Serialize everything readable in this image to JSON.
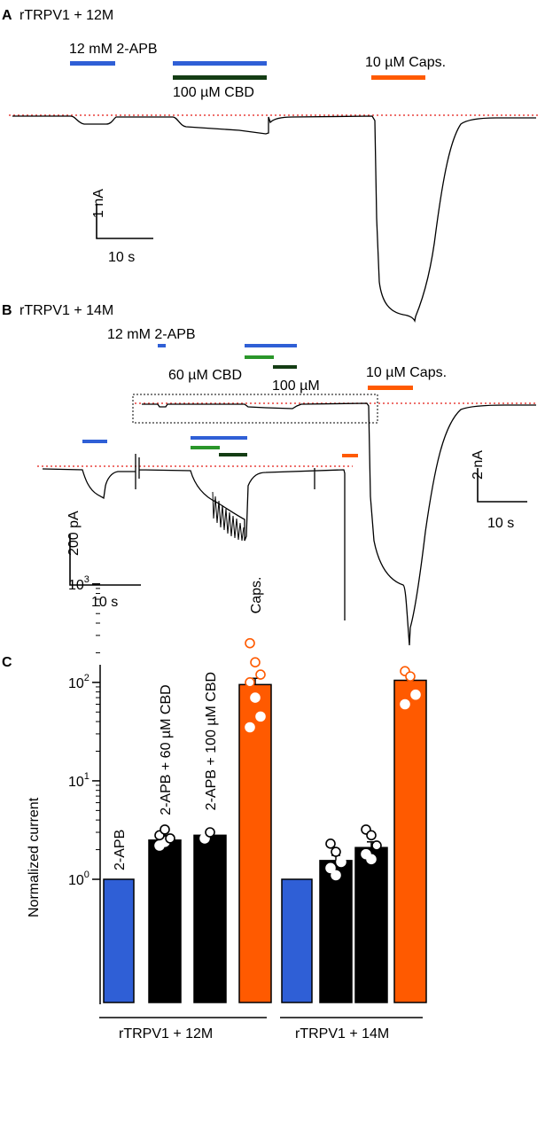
{
  "colors": {
    "blue": "#2f5fd6",
    "darkgreen": "#143d14",
    "green": "#2a962a",
    "orange": "#ff5a00",
    "baseline_red": "#e8413c",
    "bar_black": "#000000"
  },
  "panelA": {
    "letter": "A",
    "title": "rTRPV1 + 12M",
    "label_2apb": "12 mM 2-APB",
    "label_cbd": "100 µM CBD",
    "label_caps": "10 µM Caps.",
    "scale_y": "1 nA",
    "scale_x": "10 s"
  },
  "panelB": {
    "letter": "B",
    "title": "rTRPV1 + 14M",
    "label_2apb": "12 mM 2-APB",
    "label_cbd60": "60 µM CBD",
    "label_cbd100": "100 µM",
    "label_caps": "10 µM Caps.",
    "scale_y_large": "2 nA",
    "scale_x_large": "10 s",
    "scale_y_inset": "200 pA",
    "scale_x_inset": "10 s"
  },
  "panelC": {
    "letter": "C"
  },
  "chart_data": {
    "type": "bar",
    "ylabel": "Normalized current",
    "yscale": "log",
    "ylim": [
      1,
      1000
    ],
    "yticks": [
      {
        "base": "10",
        "exp": "0",
        "value": 1
      },
      {
        "base": "10",
        "exp": "1",
        "value": 10
      },
      {
        "base": "10",
        "exp": "2",
        "value": 100
      },
      {
        "base": "10",
        "exp": "3",
        "value": 1000
      }
    ],
    "groups": [
      {
        "name": "rTRPV1 + 12M",
        "bars": [
          {
            "label": "2-APB",
            "value": 1.0,
            "err": 0,
            "color": "#2f5fd6",
            "points": []
          },
          {
            "label": "2-APB + 60 µM CBD",
            "value": 2.5,
            "err": 0.3,
            "color": "#000000",
            "points": [
              2.2,
              2.4,
              2.6,
              2.8,
              3.2
            ]
          },
          {
            "label": "2-APB + 100 µM CBD",
            "value": 2.8,
            "err": 0.2,
            "color": "#000000",
            "points": [
              2.6,
              3.0
            ]
          },
          {
            "label": "Caps.",
            "value": 95,
            "err": 15,
            "color": "#ff5a00",
            "points": [
              250,
              160,
              120,
              100,
              70,
              45,
              35
            ]
          }
        ]
      },
      {
        "name": "rTRPV1 + 14M",
        "bars": [
          {
            "label": "",
            "value": 1.0,
            "err": 0,
            "color": "#2f5fd6",
            "points": []
          },
          {
            "label": "",
            "value": 1.55,
            "err": 0.2,
            "color": "#000000",
            "points": [
              2.3,
              1.9,
              1.5,
              1.3,
              1.1
            ]
          },
          {
            "label": "",
            "value": 2.1,
            "err": 0.3,
            "color": "#000000",
            "points": [
              3.2,
              2.8,
              2.2,
              1.8,
              1.6
            ]
          },
          {
            "label": "",
            "value": 105,
            "err": 10,
            "color": "#ff5a00",
            "points": [
              130,
              115,
              75,
              60
            ]
          }
        ]
      }
    ]
  }
}
